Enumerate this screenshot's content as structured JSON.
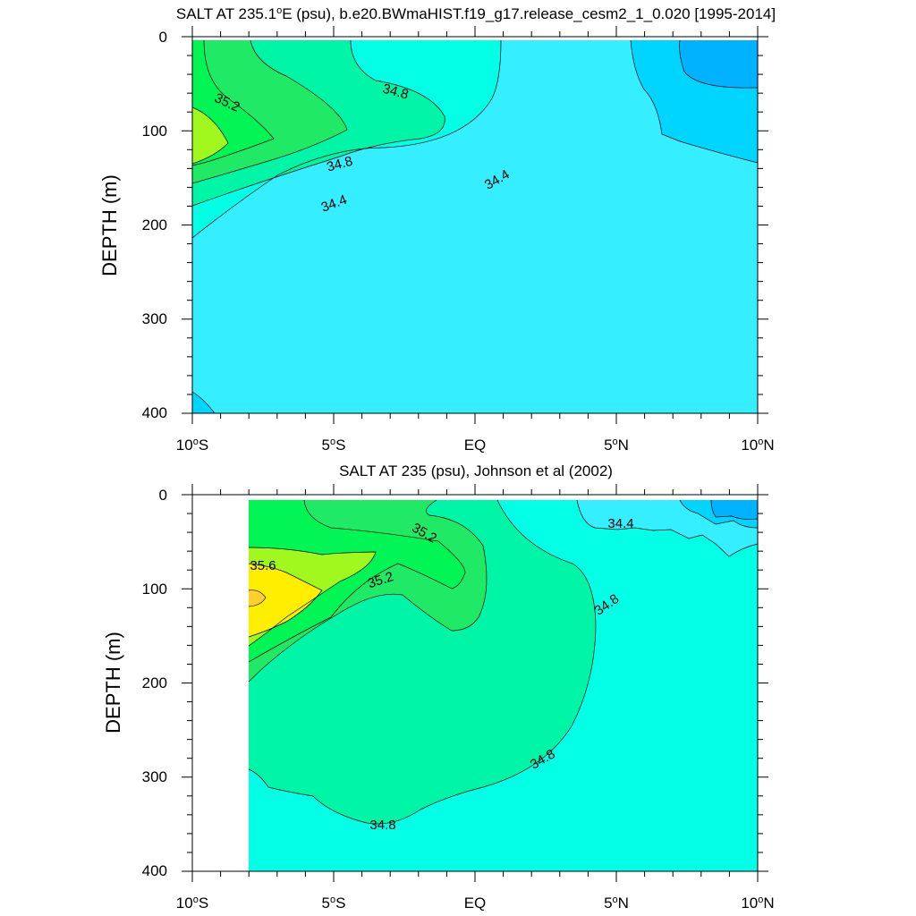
{
  "colors": {
    "s34_2": "#00B2FF",
    "s34_4": "#00D5FF",
    "s34_6": "#35EEFF",
    "s34_8": "#02FFE6",
    "s35_0": "#00F5A6",
    "s35_2": "#1FE965",
    "s35_4": "#00F555",
    "s35_6": "#A1F81E",
    "s35_8": "#FFEE00",
    "s36_0": "#FFD12F"
  },
  "chart_data": [
    {
      "type": "contour",
      "title": "SALT AT 235.1",
      "title_unit": "o",
      "title_rest": "E (psu), b.e20.BWmaHIST.f19_g17.release_cesm2_1_0.020 [1995-2014]",
      "xlabel": "",
      "ylabel": "DEPTH (m)",
      "xlim": [
        -10,
        10
      ],
      "ylim": [
        0,
        400
      ],
      "x_ticks": [
        {
          "base": "10",
          "deg": "o",
          "hemi": "S"
        },
        {
          "base": "5",
          "deg": "o",
          "hemi": "S"
        },
        {
          "base": "EQ",
          "deg": "",
          "hemi": ""
        },
        {
          "base": "5",
          "deg": "o",
          "hemi": "N"
        },
        {
          "base": "10",
          "deg": "o",
          "hemi": "N"
        }
      ],
      "y_ticks": [
        "0",
        "100",
        "200",
        "300",
        "400"
      ],
      "contour_labels": [
        "35.2",
        "34.8",
        "34.8",
        "34.4",
        "34.4"
      ]
    },
    {
      "type": "contour",
      "title": "SALT AT 235 (psu), Johnson et al (2002)",
      "xlabel": "",
      "ylabel": "DEPTH (m)",
      "xlim": [
        -10,
        10
      ],
      "ylim": [
        0,
        400
      ],
      "data_start_x": -8,
      "x_ticks": [
        {
          "base": "10",
          "deg": "o",
          "hemi": "S"
        },
        {
          "base": "5",
          "deg": "o",
          "hemi": "S"
        },
        {
          "base": "EQ",
          "deg": "",
          "hemi": ""
        },
        {
          "base": "5",
          "deg": "o",
          "hemi": "N"
        },
        {
          "base": "10",
          "deg": "o",
          "hemi": "N"
        }
      ],
      "y_ticks": [
        "0",
        "100",
        "200",
        "300",
        "400"
      ],
      "contour_labels": [
        "35.6",
        "35.2",
        "35.2",
        "34.4",
        "34.8",
        "34.8",
        "34.8"
      ]
    }
  ]
}
